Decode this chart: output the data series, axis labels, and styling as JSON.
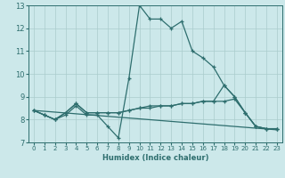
{
  "xlabel": "Humidex (Indice chaleur)",
  "bg_color": "#cce8ea",
  "grid_color": "#aacccc",
  "line_color": "#2e6e6e",
  "xlim": [
    -0.5,
    23.5
  ],
  "ylim": [
    7,
    13
  ],
  "xticks": [
    0,
    1,
    2,
    3,
    4,
    5,
    6,
    7,
    8,
    9,
    10,
    11,
    12,
    13,
    14,
    15,
    16,
    17,
    18,
    19,
    20,
    21,
    22,
    23
  ],
  "yticks": [
    7,
    8,
    9,
    10,
    11,
    12,
    13
  ],
  "lines": [
    {
      "x": [
        0,
        1,
        2,
        3,
        4,
        5,
        6,
        7,
        8,
        9,
        10,
        11,
        12,
        13,
        14,
        15,
        16,
        17,
        18,
        19,
        20,
        21,
        22,
        23
      ],
      "y": [
        8.4,
        8.2,
        8.0,
        8.2,
        8.6,
        8.2,
        8.2,
        7.7,
        7.2,
        9.8,
        13.0,
        12.4,
        12.4,
        12.0,
        12.3,
        11.0,
        10.7,
        10.3,
        9.5,
        9.0,
        8.3,
        7.7,
        7.6,
        7.6
      ],
      "marker": true
    },
    {
      "x": [
        0,
        1,
        2,
        3,
        4,
        5,
        6,
        7,
        8,
        9,
        10,
        11,
        12,
        13,
        14,
        15,
        16,
        17,
        18,
        19,
        20,
        21,
        22,
        23
      ],
      "y": [
        8.4,
        8.2,
        8.0,
        8.3,
        8.7,
        8.3,
        8.3,
        8.3,
        8.3,
        8.4,
        8.5,
        8.6,
        8.6,
        8.6,
        8.7,
        8.7,
        8.8,
        8.8,
        9.5,
        9.0,
        8.3,
        7.7,
        7.6,
        7.6
      ],
      "marker": true
    },
    {
      "x": [
        0,
        1,
        2,
        3,
        4,
        5,
        6,
        7,
        8,
        9,
        10,
        11,
        12,
        13,
        14,
        15,
        16,
        17,
        18,
        19,
        20,
        21,
        22,
        23
      ],
      "y": [
        8.4,
        8.2,
        8.0,
        8.3,
        8.7,
        8.3,
        8.3,
        8.3,
        8.3,
        8.4,
        8.5,
        8.5,
        8.6,
        8.6,
        8.7,
        8.7,
        8.8,
        8.8,
        8.8,
        8.9,
        8.3,
        7.7,
        7.6,
        7.6
      ],
      "marker": true
    },
    {
      "x": [
        0,
        23
      ],
      "y": [
        8.4,
        7.55
      ],
      "marker": false
    }
  ]
}
